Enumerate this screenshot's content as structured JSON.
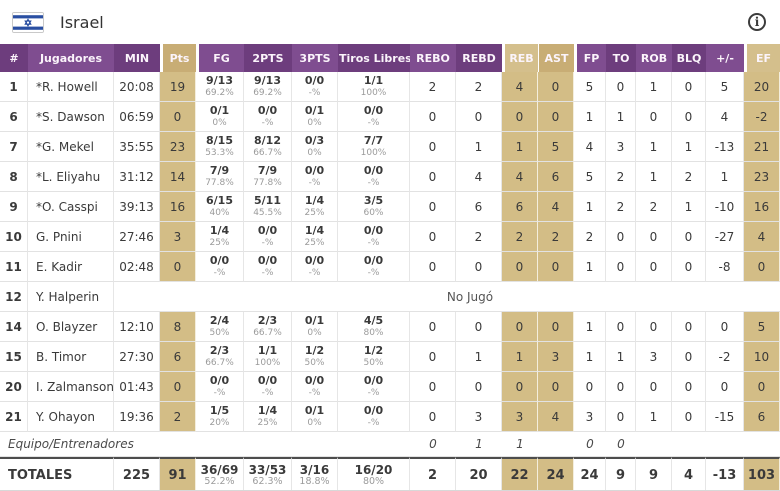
{
  "header": {
    "team": "Israel",
    "info_glyph": "i"
  },
  "colors": {
    "header_purple_dark": "#6d3d7d",
    "header_purple_light": "#7f4d90",
    "header_tan_dark": "#c8ad75",
    "header_tan_light": "#d4bf8c",
    "body_tan": "#d3bd86",
    "flag_blue": "#2a4fa2"
  },
  "table": {
    "columns": [
      {
        "key": "num",
        "label": "#",
        "shade": "pd"
      },
      {
        "key": "player",
        "label": "Jugadores",
        "shade": "pl"
      },
      {
        "key": "min",
        "label": "MIN",
        "shade": "pd"
      },
      {
        "key": "pts",
        "label": "Pts",
        "shade": "td1"
      },
      {
        "key": "fg",
        "label": "FG",
        "shade": "pl"
      },
      {
        "key": "p2",
        "label": "2PTS",
        "shade": "pd"
      },
      {
        "key": "p3",
        "label": "3PTS",
        "shade": "pl"
      },
      {
        "key": "ft",
        "label": "Tiros Libres",
        "shade": "pd"
      },
      {
        "key": "rebo",
        "label": "REBO",
        "shade": "pl"
      },
      {
        "key": "rebd",
        "label": "REBD",
        "shade": "pd"
      },
      {
        "key": "reb",
        "label": "REB",
        "shade": "td2"
      },
      {
        "key": "ast",
        "label": "AST",
        "shade": "td1"
      },
      {
        "key": "fp",
        "label": "FP",
        "shade": "pl"
      },
      {
        "key": "to",
        "label": "TO",
        "shade": "pd"
      },
      {
        "key": "rob",
        "label": "ROB",
        "shade": "pl"
      },
      {
        "key": "blq",
        "label": "BLQ",
        "shade": "pd"
      },
      {
        "key": "pm",
        "label": "+/-",
        "shade": "pl"
      },
      {
        "key": "ef",
        "label": "EF",
        "shade": "td2"
      }
    ],
    "rows": [
      {
        "num": "1",
        "player": "*R. Howell",
        "min": "20:08",
        "pts": "19",
        "fg": [
          "9/13",
          "69.2%"
        ],
        "p2": [
          "9/13",
          "69.2%"
        ],
        "p3": [
          "0/0",
          "-%"
        ],
        "ft": [
          "1/1",
          "100%"
        ],
        "rebo": "2",
        "rebd": "2",
        "reb": "4",
        "ast": "0",
        "fp": "5",
        "to": "0",
        "rob": "1",
        "blq": "0",
        "pm": "5",
        "ef": "20"
      },
      {
        "num": "6",
        "player": "*S. Dawson",
        "min": "06:59",
        "pts": "0",
        "fg": [
          "0/1",
          "0%"
        ],
        "p2": [
          "0/0",
          "-%"
        ],
        "p3": [
          "0/1",
          "0%"
        ],
        "ft": [
          "0/0",
          "-%"
        ],
        "rebo": "0",
        "rebd": "0",
        "reb": "0",
        "ast": "0",
        "fp": "1",
        "to": "1",
        "rob": "0",
        "blq": "0",
        "pm": "4",
        "ef": "-2"
      },
      {
        "num": "7",
        "player": "*G. Mekel",
        "min": "35:55",
        "pts": "23",
        "fg": [
          "8/15",
          "53.3%"
        ],
        "p2": [
          "8/12",
          "66.7%"
        ],
        "p3": [
          "0/3",
          "0%"
        ],
        "ft": [
          "7/7",
          "100%"
        ],
        "rebo": "0",
        "rebd": "1",
        "reb": "1",
        "ast": "5",
        "fp": "4",
        "to": "3",
        "rob": "1",
        "blq": "1",
        "pm": "-13",
        "ef": "21"
      },
      {
        "num": "8",
        "player": "*L. Eliyahu",
        "min": "31:12",
        "pts": "14",
        "fg": [
          "7/9",
          "77.8%"
        ],
        "p2": [
          "7/9",
          "77.8%"
        ],
        "p3": [
          "0/0",
          "-%"
        ],
        "ft": [
          "0/0",
          "-%"
        ],
        "rebo": "0",
        "rebd": "4",
        "reb": "4",
        "ast": "6",
        "fp": "5",
        "to": "2",
        "rob": "1",
        "blq": "2",
        "pm": "1",
        "ef": "23"
      },
      {
        "num": "9",
        "player": "*O. Casspi",
        "min": "39:13",
        "pts": "16",
        "fg": [
          "6/15",
          "40%"
        ],
        "p2": [
          "5/11",
          "45.5%"
        ],
        "p3": [
          "1/4",
          "25%"
        ],
        "ft": [
          "3/5",
          "60%"
        ],
        "rebo": "0",
        "rebd": "6",
        "reb": "6",
        "ast": "4",
        "fp": "1",
        "to": "2",
        "rob": "2",
        "blq": "1",
        "pm": "-10",
        "ef": "16"
      },
      {
        "num": "10",
        "player": "G. Pnini",
        "min": "27:46",
        "pts": "3",
        "fg": [
          "1/4",
          "25%"
        ],
        "p2": [
          "0/0",
          "-%"
        ],
        "p3": [
          "1/4",
          "25%"
        ],
        "ft": [
          "0/0",
          "-%"
        ],
        "rebo": "0",
        "rebd": "2",
        "reb": "2",
        "ast": "2",
        "fp": "2",
        "to": "0",
        "rob": "0",
        "blq": "0",
        "pm": "-27",
        "ef": "4"
      },
      {
        "num": "11",
        "player": "E. Kadir",
        "min": "02:48",
        "pts": "0",
        "fg": [
          "0/0",
          "-%"
        ],
        "p2": [
          "0/0",
          "-%"
        ],
        "p3": [
          "0/0",
          "-%"
        ],
        "ft": [
          "0/0",
          "-%"
        ],
        "rebo": "0",
        "rebd": "0",
        "reb": "0",
        "ast": "0",
        "fp": "1",
        "to": "0",
        "rob": "0",
        "blq": "0",
        "pm": "-8",
        "ef": "0"
      },
      {
        "num": "12",
        "player": "Y. Halperin",
        "dnp": true
      },
      {
        "num": "14",
        "player": "O. Blayzer",
        "min": "12:10",
        "pts": "8",
        "fg": [
          "2/4",
          "50%"
        ],
        "p2": [
          "2/3",
          "66.7%"
        ],
        "p3": [
          "0/1",
          "0%"
        ],
        "ft": [
          "4/5",
          "80%"
        ],
        "rebo": "0",
        "rebd": "0",
        "reb": "0",
        "ast": "0",
        "fp": "1",
        "to": "0",
        "rob": "0",
        "blq": "0",
        "pm": "0",
        "ef": "5"
      },
      {
        "num": "15",
        "player": "B. Timor",
        "min": "27:30",
        "pts": "6",
        "fg": [
          "2/3",
          "66.7%"
        ],
        "p2": [
          "1/1",
          "100%"
        ],
        "p3": [
          "1/2",
          "50%"
        ],
        "ft": [
          "1/2",
          "50%"
        ],
        "rebo": "0",
        "rebd": "1",
        "reb": "1",
        "ast": "3",
        "fp": "1",
        "to": "1",
        "rob": "3",
        "blq": "0",
        "pm": "-2",
        "ef": "10"
      },
      {
        "num": "20",
        "player": "I. Zalmanson",
        "min": "01:43",
        "pts": "0",
        "fg": [
          "0/0",
          "-%"
        ],
        "p2": [
          "0/0",
          "-%"
        ],
        "p3": [
          "0/0",
          "-%"
        ],
        "ft": [
          "0/0",
          "-%"
        ],
        "rebo": "0",
        "rebd": "0",
        "reb": "0",
        "ast": "0",
        "fp": "0",
        "to": "0",
        "rob": "0",
        "blq": "0",
        "pm": "0",
        "ef": "0"
      },
      {
        "num": "21",
        "player": "Y. Ohayon",
        "min": "19:36",
        "pts": "2",
        "fg": [
          "1/5",
          "20%"
        ],
        "p2": [
          "1/4",
          "25%"
        ],
        "p3": [
          "0/1",
          "0%"
        ],
        "ft": [
          "0/0",
          "-%"
        ],
        "rebo": "0",
        "rebd": "3",
        "reb": "3",
        "ast": "4",
        "fp": "3",
        "to": "0",
        "rob": "1",
        "blq": "0",
        "pm": "-15",
        "ef": "6"
      }
    ],
    "dnp_label": "No Jugó",
    "team_row": {
      "label": "Equipo/Entrenadores",
      "rebo": "0",
      "rebd": "1",
      "reb": "1",
      "ast": "",
      "fp": "0",
      "to": "0"
    },
    "totals": {
      "label": "TOTALES",
      "min": "225",
      "pts": "91",
      "fg": [
        "36/69",
        "52.2%"
      ],
      "p2": [
        "33/53",
        "62.3%"
      ],
      "p3": [
        "3/16",
        "18.8%"
      ],
      "ft": [
        "16/20",
        "80%"
      ],
      "rebo": "2",
      "rebd": "20",
      "reb": "22",
      "ast": "24",
      "fp": "24",
      "to": "9",
      "rob": "9",
      "blq": "4",
      "pm": "-13",
      "ef": "103"
    }
  }
}
